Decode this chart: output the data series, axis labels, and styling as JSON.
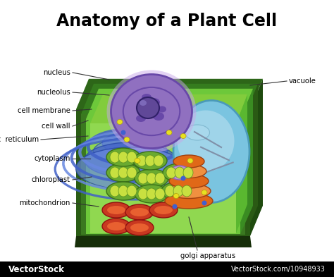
{
  "title": "Anatomy of a Plant Cell",
  "title_fontsize": 17,
  "title_fontweight": "bold",
  "background_color": "#ffffff",
  "cell_wall_outer": "#2a5c14",
  "cell_wall_mid": "#3a7820",
  "cell_wall_inner": "#4a9c28",
  "cell_inner_green": "#6dc83a",
  "cell_light_green": "#90d850",
  "vacuole_color": "#7ac4e0",
  "vacuole_light": "#b8dff0",
  "vacuole_edge": "#4a9ab8",
  "nucleus_outer": "#b090d0",
  "nucleus_main": "#9070c0",
  "nucleus_dark": "#6848a8",
  "nucleus_inner": "#604898",
  "nucleolus_color": "#3838a0",
  "er_color": "#4060c8",
  "er_light": "#6888e0",
  "chloroplast_outer": "#6aaa30",
  "chloroplast_inner": "#c8e040",
  "mito_outer": "#c83820",
  "mito_inner": "#e86030",
  "golgi_color": "#e06818",
  "golgi_light": "#f09040",
  "line_color": "#333333",
  "label_fontsize": 7.2,
  "watermark_text": "VectorStock",
  "watermark_right": "VectorStock.com/10948933",
  "bottom_bar_color": "#000000"
}
